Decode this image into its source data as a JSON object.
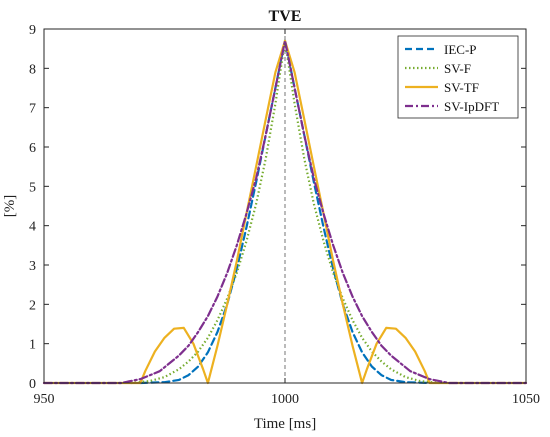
{
  "chart_data": {
    "type": "line",
    "title": "TVE",
    "xlabel": "Time [ms]",
    "ylabel": "[%]",
    "xlim": [
      950,
      1050
    ],
    "ylim": [
      0,
      9
    ],
    "xticks": [
      950,
      1000,
      1050
    ],
    "yticks": [
      0,
      1,
      2,
      3,
      4,
      5,
      6,
      7,
      8,
      9
    ],
    "grid": false,
    "legend_position": "top-right",
    "series": [
      {
        "name": "IEC-P",
        "color": "#0072BD",
        "style": "dashed",
        "x": [
          970,
          975,
          978,
          980,
          982,
          984,
          986,
          988,
          990,
          992,
          994,
          996,
          998,
          1000,
          1002,
          1004,
          1006,
          1008,
          1010,
          1012,
          1014,
          1016,
          1018,
          1020,
          1022,
          1025,
          1030
        ],
        "y": [
          0,
          0.02,
          0.08,
          0.2,
          0.42,
          0.78,
          1.3,
          2.0,
          2.9,
          3.95,
          5.1,
          6.3,
          7.5,
          8.7,
          7.5,
          6.3,
          5.1,
          3.95,
          2.9,
          2.0,
          1.3,
          0.78,
          0.42,
          0.2,
          0.08,
          0.02,
          0
        ]
      },
      {
        "name": "SV-F",
        "color": "#77AC30",
        "style": "dotted",
        "x": [
          968,
          972,
          975,
          978,
          980,
          982,
          984,
          986,
          988,
          990,
          992,
          994,
          996,
          998,
          1000,
          1002,
          1004,
          1006,
          1008,
          1010,
          1012,
          1014,
          1016,
          1018,
          1020,
          1022,
          1025,
          1028,
          1032
        ],
        "y": [
          0,
          0.05,
          0.15,
          0.35,
          0.55,
          0.8,
          1.15,
          1.6,
          2.15,
          2.8,
          3.6,
          4.55,
          5.7,
          7.1,
          8.7,
          7.1,
          5.7,
          4.55,
          3.6,
          2.8,
          2.15,
          1.6,
          1.15,
          0.8,
          0.55,
          0.35,
          0.15,
          0.05,
          0
        ]
      },
      {
        "name": "SV-TF",
        "color": "#EDB120",
        "style": "solid",
        "x": [
          950,
          970,
          971,
          973,
          975,
          977,
          979,
          981,
          983,
          984,
          986,
          988,
          990,
          992,
          994,
          996,
          998,
          1000,
          1002,
          1004,
          1006,
          1008,
          1010,
          1012,
          1014,
          1016,
          1017,
          1019,
          1021,
          1023,
          1025,
          1027,
          1029,
          1030,
          1050
        ],
        "y": [
          0,
          0,
          0.3,
          0.8,
          1.15,
          1.38,
          1.4,
          1.0,
          0.35,
          0,
          0.95,
          2.0,
          3.1,
          4.3,
          5.5,
          6.7,
          7.9,
          8.7,
          7.9,
          6.7,
          5.5,
          4.3,
          3.1,
          2.0,
          0.95,
          0,
          0.35,
          1.0,
          1.4,
          1.38,
          1.15,
          0.8,
          0.3,
          0,
          0
        ]
      },
      {
        "name": "SV-IpDFT",
        "color": "#7E2F8E",
        "style": "dashdot",
        "x": [
          950,
          966,
          970,
          974,
          978,
          980,
          982,
          984,
          986,
          988,
          990,
          992,
          994,
          996,
          998,
          1000,
          1002,
          1004,
          1006,
          1008,
          1010,
          1012,
          1014,
          1016,
          1018,
          1020,
          1022,
          1026,
          1030,
          1034,
          1050
        ],
        "y": [
          0,
          0,
          0.1,
          0.3,
          0.7,
          0.95,
          1.3,
          1.7,
          2.2,
          2.8,
          3.5,
          4.3,
          5.2,
          6.3,
          7.5,
          8.7,
          7.5,
          6.3,
          5.2,
          4.3,
          3.5,
          2.8,
          2.2,
          1.7,
          1.3,
          0.95,
          0.7,
          0.3,
          0.1,
          0,
          0
        ]
      }
    ]
  }
}
